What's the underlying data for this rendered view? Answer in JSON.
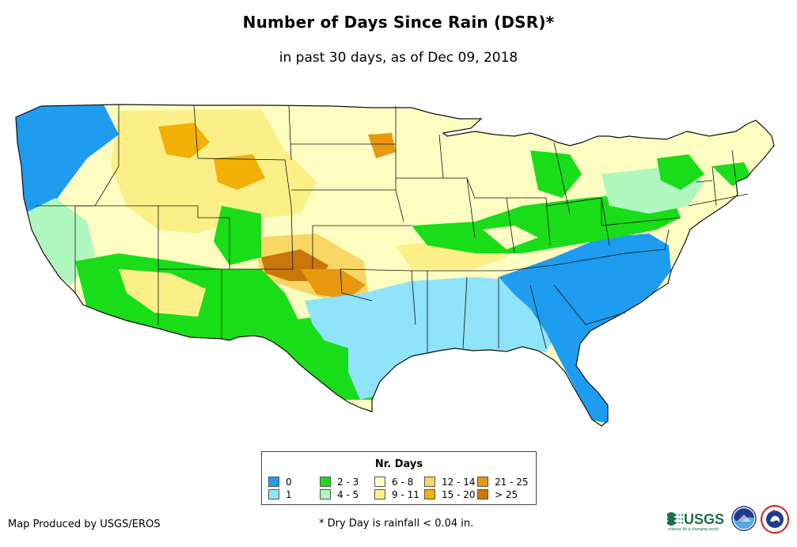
{
  "title": "Number of Days Since Rain (DSR)*",
  "subtitle": "in past 30 days, as of Dec 09, 2018",
  "legend": {
    "title": "Nr. Days",
    "items": [
      {
        "label": "0",
        "color": "#1e9cf0"
      },
      {
        "label": "1",
        "color": "#8fe3fb"
      },
      {
        "label": "2 - 3",
        "color": "#19dd19"
      },
      {
        "label": "4 - 5",
        "color": "#aff7bf"
      },
      {
        "label": "6 - 8",
        "color": "#fdfdc1"
      },
      {
        "label": "9 - 11",
        "color": "#fbf087"
      },
      {
        "label": "12 - 14",
        "color": "#f9d766"
      },
      {
        "label": "15 - 20",
        "color": "#f2b007"
      },
      {
        "label": "21 - 25",
        "color": "#e6980f"
      },
      {
        "label": "> 25",
        "color": "#c97707"
      }
    ]
  },
  "credit": "Map Produced by USGS/EROS",
  "footnote": "* Dry Day is rainfall < 0.04 in.",
  "logos": {
    "usgs": {
      "text": "USGS",
      "tagline": "science for a changing world",
      "color": "#1f6f45"
    },
    "noaa": {
      "text": "NOAA"
    },
    "nws": {
      "text": "NWS"
    }
  }
}
